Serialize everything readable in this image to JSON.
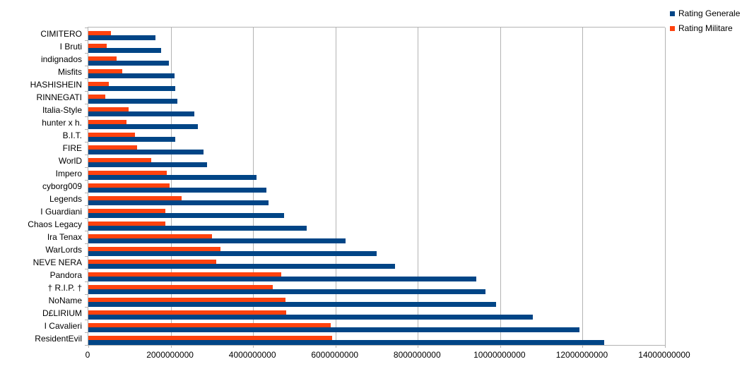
{
  "chart_data": {
    "type": "bar",
    "orientation": "horizontal",
    "title": "",
    "xlabel": "",
    "ylabel": "",
    "xlim": [
      0,
      14000000000
    ],
    "x_ticks": [
      0,
      2000000000,
      4000000000,
      6000000000,
      8000000000,
      10000000000,
      12000000000,
      14000000000
    ],
    "x_tick_labels": [
      "0",
      "2000000000",
      "4000000000",
      "6000000000",
      "8000000000",
      "10000000000",
      "12000000000",
      "14000000000"
    ],
    "grid": "vertical-gridlines-at-each-x-tick",
    "legend_position": "top-right",
    "bar_order_within_group_top_to_bottom": [
      "Rating Militare",
      "Rating Generale"
    ],
    "categories": [
      "CIMITERO",
      "I Bruti",
      "indignados",
      "Misfits",
      "HASHISHEIN",
      "RINNEGATI",
      "Italia-Style",
      "hunter x h.",
      "B.I.T.",
      "FIRE",
      "WorlD",
      "Impero",
      "cyborg009",
      "Legends",
      "I Guardiani",
      "Chaos Legacy",
      "Ira Tenax",
      "WarLords",
      "NEVE NERA",
      "Pandora",
      "† R.I.P. †",
      "NoName",
      "D£LIRIUM",
      "I Cavalieri",
      "ResidentEvil"
    ],
    "series": [
      {
        "name": "Rating Generale",
        "color": "#004586",
        "values": [
          1630000000,
          1770000000,
          1960000000,
          2090000000,
          2110000000,
          2170000000,
          2570000000,
          2660000000,
          2110000000,
          2790000000,
          2890000000,
          4090000000,
          4320000000,
          4370000000,
          4750000000,
          5300000000,
          6240000000,
          7000000000,
          7450000000,
          9420000000,
          9640000000,
          9900000000,
          10790000000,
          11930000000,
          12530000000
        ]
      },
      {
        "name": "Rating Militare",
        "color": "#FF420E",
        "values": [
          550000000,
          450000000,
          690000000,
          820000000,
          500000000,
          410000000,
          970000000,
          920000000,
          1130000000,
          1180000000,
          1530000000,
          1910000000,
          1980000000,
          2270000000,
          1870000000,
          1870000000,
          3000000000,
          3210000000,
          3110000000,
          4680000000,
          4480000000,
          4790000000,
          4810000000,
          5880000000,
          5920000000
        ]
      }
    ]
  },
  "colors": {
    "background": "#ffffff",
    "gridline": "#b3b3b3",
    "axis": "#b3b3b3",
    "text": "#000000",
    "series_generale": "#004586",
    "series_militare": "#FF420E"
  }
}
